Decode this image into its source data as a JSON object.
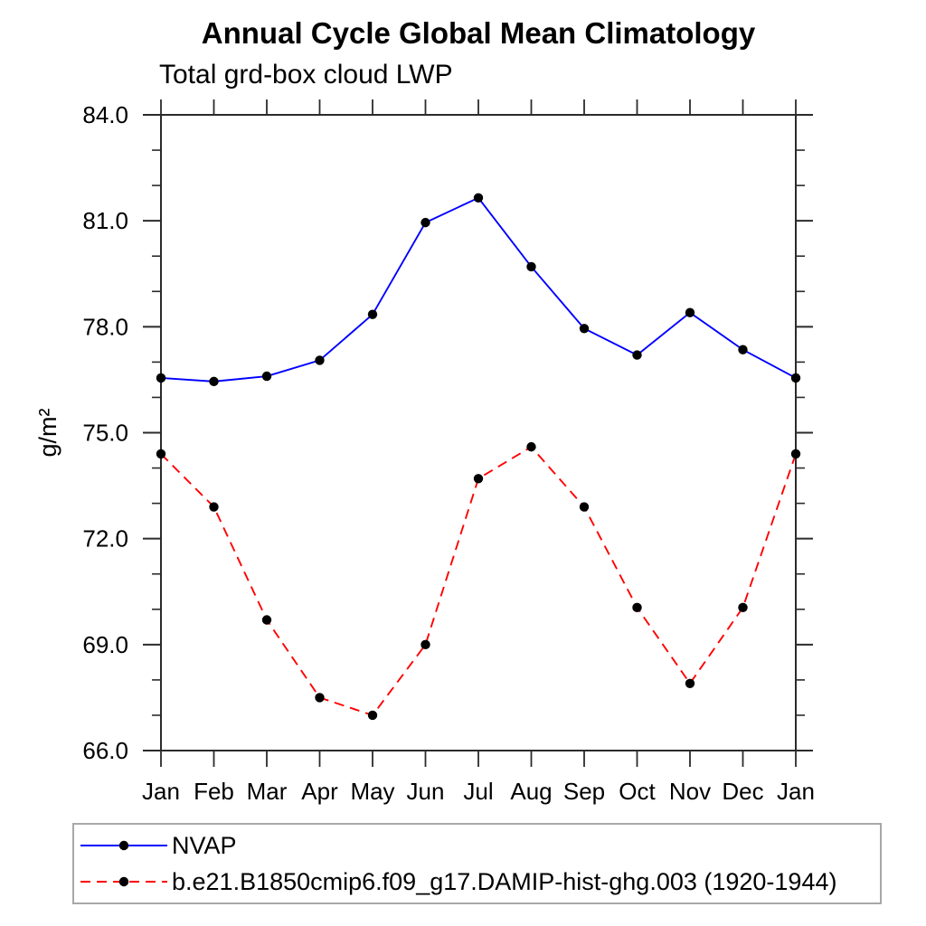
{
  "header": {
    "title": "Annual Cycle Global Mean Climatology",
    "subtitle": "Total grd-box cloud LWP"
  },
  "chart_data": {
    "type": "line",
    "title": "Annual Cycle Global Mean Climatology",
    "subtitle": "Total grd-box cloud LWP",
    "xlabel": "",
    "ylabel": "g/m²",
    "categories": [
      "Jan",
      "Feb",
      "Mar",
      "Apr",
      "May",
      "Jun",
      "Jul",
      "Aug",
      "Sep",
      "Oct",
      "Nov",
      "Dec",
      "Jan"
    ],
    "ylim": [
      66,
      84
    ],
    "yticks_major": [
      66,
      69,
      72,
      75,
      78,
      81,
      84
    ],
    "ytick_labels": [
      "66.0",
      "69.0",
      "72.0",
      "75.0",
      "78.0",
      "81.0",
      "84.0"
    ],
    "ytick_minor_step": 1,
    "grid": false,
    "legend_position": "bottom-left-box",
    "marker": {
      "shape": "circle",
      "color": "#000000",
      "radius": 5.2
    },
    "axis_color": "#2b2b2b",
    "series": [
      {
        "name": "NVAP",
        "color": "#0000ff",
        "style": "solid",
        "values": [
          76.55,
          76.45,
          76.6,
          77.05,
          78.35,
          80.95,
          81.65,
          79.7,
          77.95,
          77.2,
          78.4,
          77.35,
          76.55
        ]
      },
      {
        "name": "b.e21.B1850cmip6.f09_g17.DAMIP-hist-ghg.003 (1920-1944)",
        "color": "#ff0000",
        "style": "dashed",
        "values": [
          74.4,
          72.9,
          69.7,
          67.5,
          67.0,
          69.0,
          73.7,
          74.6,
          72.9,
          70.05,
          67.9,
          70.05,
          74.4
        ]
      }
    ]
  }
}
